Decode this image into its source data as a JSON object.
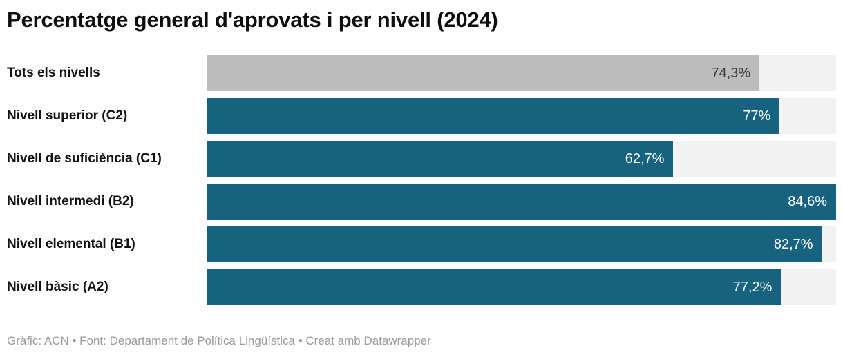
{
  "title": "Percentatge general d'aprovats i per nivell (2024)",
  "footer": "Gràfic: ACN • Font: Departament de Política Lingüística • Creat amb Datawrapper",
  "colors": {
    "bar_teal": "#16627f",
    "bar_gray": "#bcbcbc",
    "track": "#f2f2f2",
    "value_dark": "#3b3b3b",
    "value_light": "#ffffff",
    "label_text": "#111111",
    "footer_text": "#9a9a9a"
  },
  "chart_data": {
    "type": "bar",
    "orientation": "horizontal",
    "title": "Percentatge general d'aprovats i per nivell (2024)",
    "xlabel": "",
    "ylabel": "",
    "xlim": [
      0,
      84.6
    ],
    "grid": false,
    "legend": false,
    "categories": [
      "Tots els nivells",
      "Nivell superior (C2)",
      "Nivell de suficiència (C1)",
      "Nivell intermedi (B2)",
      "Nivell elemental (B1)",
      "Nivell bàsic (A2)"
    ],
    "values": [
      74.3,
      77,
      62.7,
      84.6,
      82.7,
      77.2
    ],
    "value_labels": [
      "74,3%",
      "77%",
      "62,7%",
      "84,6%",
      "82,7%",
      "77,2%"
    ],
    "source": "Gràfic: ACN • Font: Departament de Política Lingüística • Creat amb Datawrapper"
  },
  "rows": [
    {
      "label": "Tots els nivells",
      "value": 74.3,
      "value_label": "74,3%",
      "variant": "muted"
    },
    {
      "label": "Nivell superior (C2)",
      "value": 77,
      "value_label": "77%",
      "variant": "primary"
    },
    {
      "label": "Nivell de suficiència (C1)",
      "value": 62.7,
      "value_label": "62,7%",
      "variant": "primary"
    },
    {
      "label": "Nivell intermedi (B2)",
      "value": 84.6,
      "value_label": "84,6%",
      "variant": "primary"
    },
    {
      "label": "Nivell elemental (B1)",
      "value": 82.7,
      "value_label": "82,7%",
      "variant": "primary"
    },
    {
      "label": "Nivell bàsic (A2)",
      "value": 77.2,
      "value_label": "77,2%",
      "variant": "primary"
    }
  ]
}
